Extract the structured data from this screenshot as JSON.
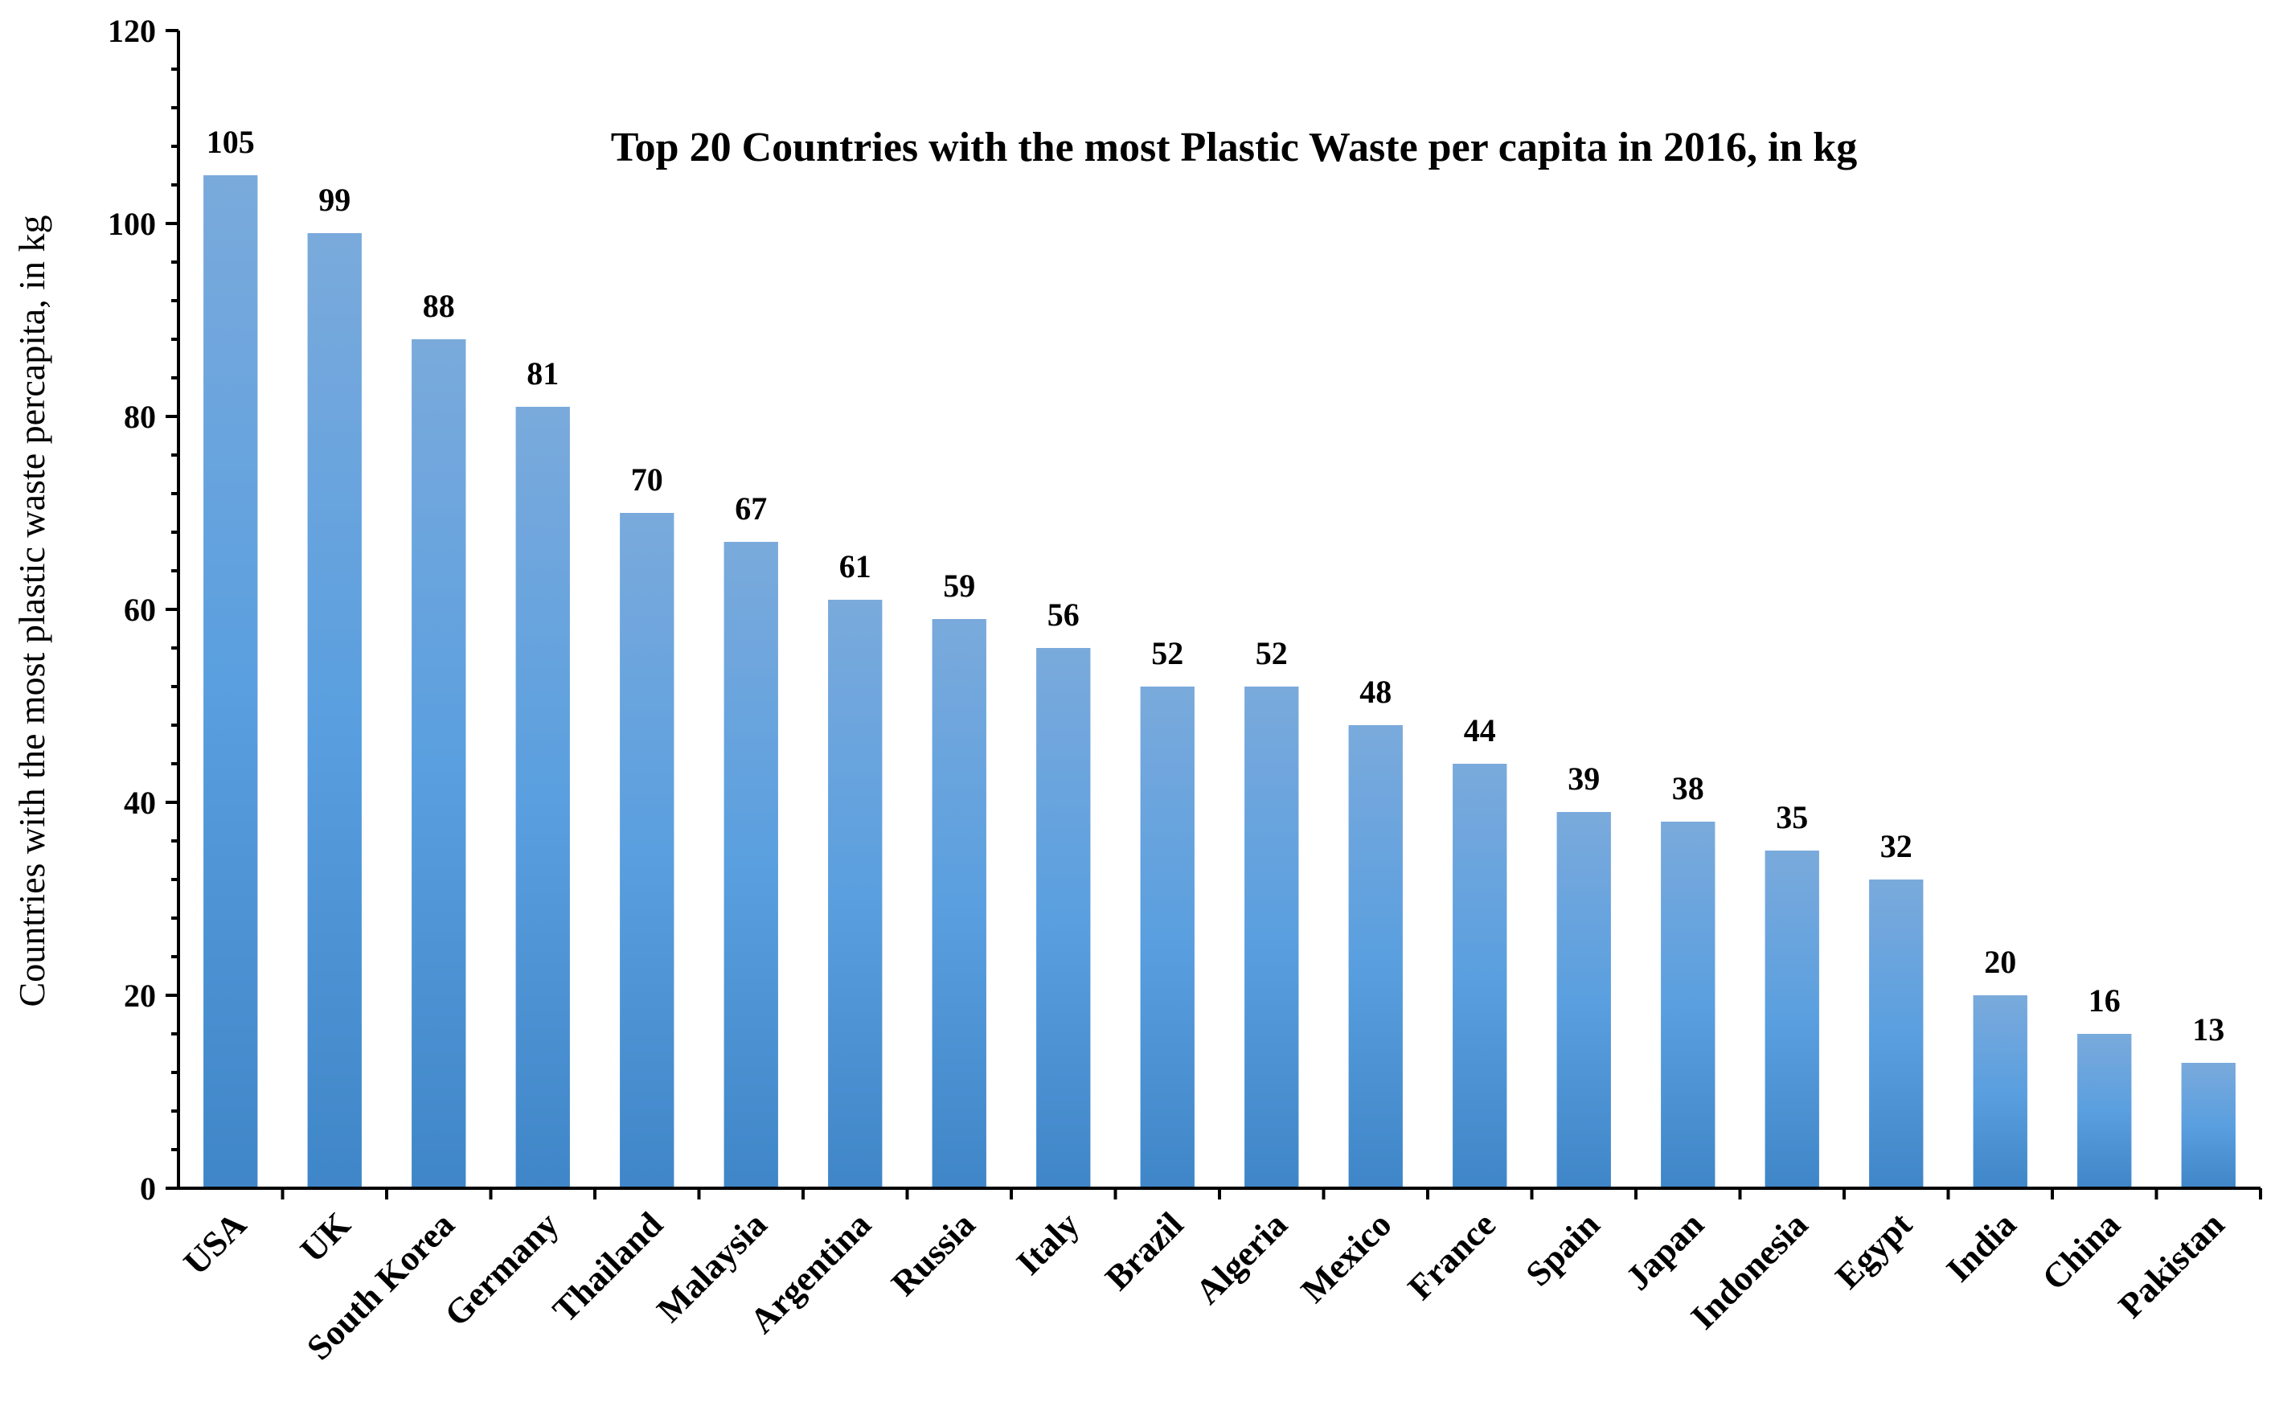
{
  "chart_data": {
    "type": "bar",
    "title": "Top 20 Countries with the most Plastic Waste per capita in 2016, in kg",
    "xlabel": "",
    "ylabel": "Countries with the most plastic waste percapita, in kg",
    "categories": [
      "USA",
      "UK",
      "South Korea",
      "Germany",
      "Thailand",
      "Malaysia",
      "Argentina",
      "Russia",
      "Italy",
      "Brazil",
      "Algeria",
      "Mexico",
      "France",
      "Spain",
      "Japan",
      "Indonesia",
      "Egypt",
      "India",
      "China",
      "Pakistan"
    ],
    "values": [
      105,
      99,
      88,
      81,
      70,
      67,
      61,
      59,
      56,
      52,
      52,
      48,
      44,
      39,
      38,
      35,
      32,
      20,
      16,
      13
    ],
    "ylim": [
      0,
      120
    ],
    "yticks": [
      0,
      20,
      40,
      60,
      80,
      100,
      120
    ],
    "data_labels": true,
    "grid": false,
    "legend": "none",
    "bar_color_top": "#7aaadc",
    "bar_color_mid": "#5a9fdf",
    "bar_color_bottom": "#3f86c8"
  }
}
